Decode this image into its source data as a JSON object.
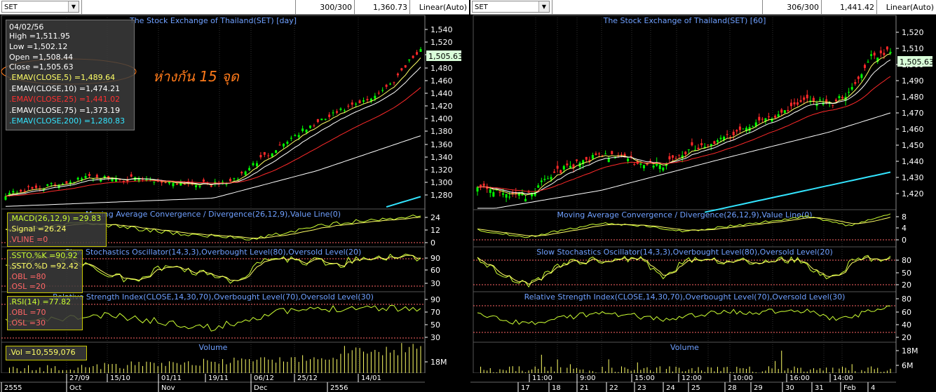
{
  "colors": {
    "up": "#00ff00",
    "down": "#ff2a2a",
    "ema5": "#ffff66",
    "ema10": "#ffffff",
    "ema25": "#ff2a2a",
    "ema75": "#ffffff",
    "ema200": "#33e5ff",
    "grid": "#303030",
    "axis": "#ffffff",
    "osc": "#ccff33",
    "level": "#ff6666",
    "vol": "#ffff66",
    "title": "#6fa0ff",
    "callout": "#ff7a1a"
  },
  "left": {
    "symbol": "SET",
    "count": "300/300",
    "last": "1,360.73",
    "scale": "Linear(Auto)",
    "price_title": "The Stock Exchange of Thailand(SET) [day]",
    "price_ticks": [
      "1,540",
      "1,520",
      "1,500",
      "1,480",
      "1,460",
      "1,440",
      "1,420",
      "1,400",
      "1,380",
      "1,360",
      "1,340",
      "1,320",
      "1,300",
      "1,280"
    ],
    "current_price": "1,505.63",
    "info": {
      "date": "04/02/56",
      "high": "High  =1,511.95",
      "low": "Low  =1,502.12",
      "open": "Open  =1,508.44",
      "close": "Close  =1,505.63",
      "ema5": ".EMAV(CLOSE,5)   =1,489.64",
      "ema10": ".EMAV(CLOSE,10)   =1,474.21",
      "ema25": ".EMAV(CLOSE,25)   =1,441.02",
      "ema75": ".EMAV(CLOSE,75)   =1,373.19",
      "ema200": ".EMAV(CLOSE,200)  =1,280.83"
    },
    "callout": "ห่างกัน 15 จุด",
    "macd_title": "Moving Average Convergence / Divergence(26,12,9),Value Line(0)",
    "macd_box": {
      "macd": ".MACD(26,12,9)   =29.83",
      "signal": ".Signal   =26.24",
      "vline": ".VLINE   =0"
    },
    "macd_ticks": [
      "24",
      "12",
      "0"
    ],
    "ssto_title": "Slow Stochastics Oscillator(14,3,3),Overbought Level(80),Oversold Level(20)",
    "ssto_box": {
      "k": ".SSTO.%K   =90.92",
      "d": ".SSTO.%D   =92.42",
      "obl": ".OBL   =80",
      "osl": ".OSL   =20"
    },
    "ssto_ticks": [
      "90",
      "60",
      "30"
    ],
    "rsi_title": "Relative Strength Index(CLOSE,14,30,70),Overbought Level(70),Oversold Level(30)",
    "rsi_box": {
      "rsi": ".RSI(14)   =77.82",
      "obl": ".OBL   =70",
      "osl": ".OSL   =30"
    },
    "rsi_ticks": [
      "90",
      "70",
      "50",
      "30"
    ],
    "vol_title": "Volume",
    "vol_box": ".Vol   =10,559,076",
    "vol_ticks": [
      "18M"
    ],
    "dates": [
      "27/09",
      "15/10",
      "01/11",
      "19/11",
      "06/12",
      "25/12",
      "14/01"
    ],
    "months": [
      "2555",
      "Oct",
      "Nov",
      "Dec",
      "2556"
    ]
  },
  "right": {
    "symbol": "SET",
    "count": "306/300",
    "last": "1,441.42",
    "scale": "Linear(Auto)",
    "price_title": "The Stock Exchange of Thailand(SET) [60]",
    "price_ticks": [
      "1,520",
      "1,510",
      "1,500",
      "1,490",
      "1,480",
      "1,470",
      "1,460",
      "1,450",
      "1,440",
      "1,430",
      "1,420"
    ],
    "current_price": "1,505.63",
    "macd_title": "Moving Average Convergence / Divergence(26,12,9),Value Line(0)",
    "macd_ticks": [
      "8",
      "4",
      "0"
    ],
    "ssto_title": "Slow Stochastics Oscillator(14,3,3),Overbought Level(80),Oversold Level(20)",
    "ssto_ticks": [
      "80",
      "50",
      "20"
    ],
    "rsi_title": "Relative Strength Index(CLOSE,14,30,70),Overbought Level(70),Oversold Level(30)",
    "rsi_ticks": [
      "80",
      "60",
      "40",
      "20"
    ],
    "vol_title": "Volume",
    "vol_ticks": [
      "18M",
      "6M"
    ],
    "times": [
      "11:00",
      "9:00",
      "15:00",
      "12:00",
      "10:00",
      "16:00",
      "14:00"
    ],
    "days": [
      "17",
      "18",
      "21",
      "22",
      "23",
      "24",
      "25",
      "28",
      "29",
      "30",
      "31",
      "Feb",
      "4"
    ]
  }
}
